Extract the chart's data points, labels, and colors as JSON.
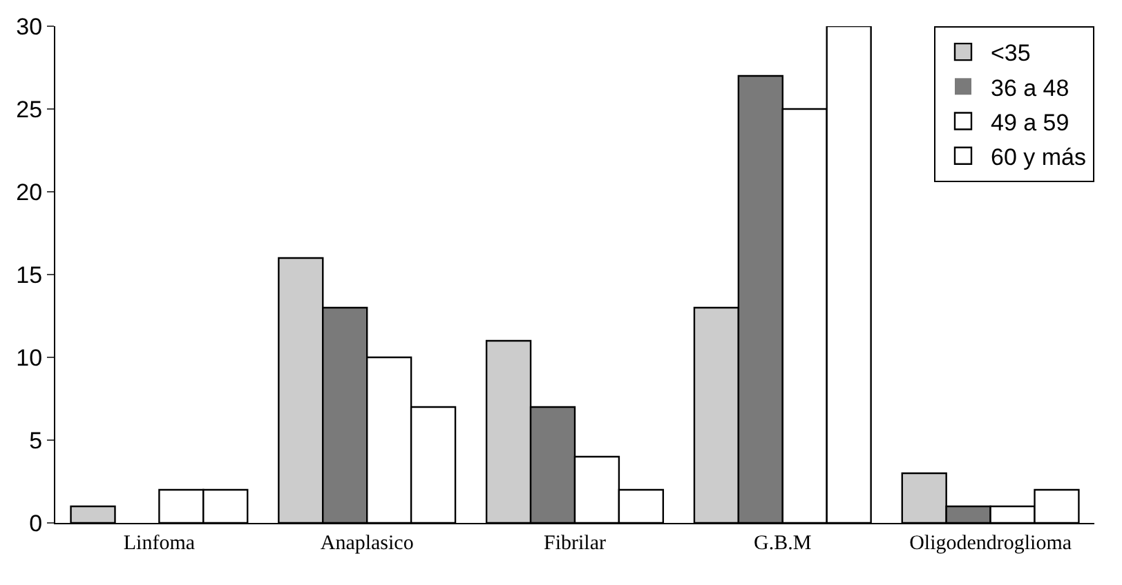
{
  "chart_data": {
    "type": "bar",
    "categories": [
      "Linfoma",
      "Anaplasico",
      "Fibrilar",
      "G.B.M",
      "Oligodendroglioma"
    ],
    "series": [
      {
        "name": "<35",
        "color": "#cccccc",
        "values": [
          1,
          16,
          11,
          13,
          3
        ]
      },
      {
        "name": "36 a 48",
        "color": "#7a7a7a",
        "values": [
          0,
          13,
          7,
          27,
          1
        ]
      },
      {
        "name": "49 a 59",
        "color": "#ffffff",
        "values": [
          2,
          10,
          4,
          25,
          1
        ]
      },
      {
        "name": "60 y más",
        "color": "#ffffff",
        "values": [
          2,
          7,
          2,
          30,
          2
        ]
      }
    ],
    "ylim": [
      0,
      30
    ],
    "yticks": [
      0,
      5,
      10,
      15,
      20,
      25,
      30
    ],
    "grid": false,
    "legend": "top right"
  }
}
